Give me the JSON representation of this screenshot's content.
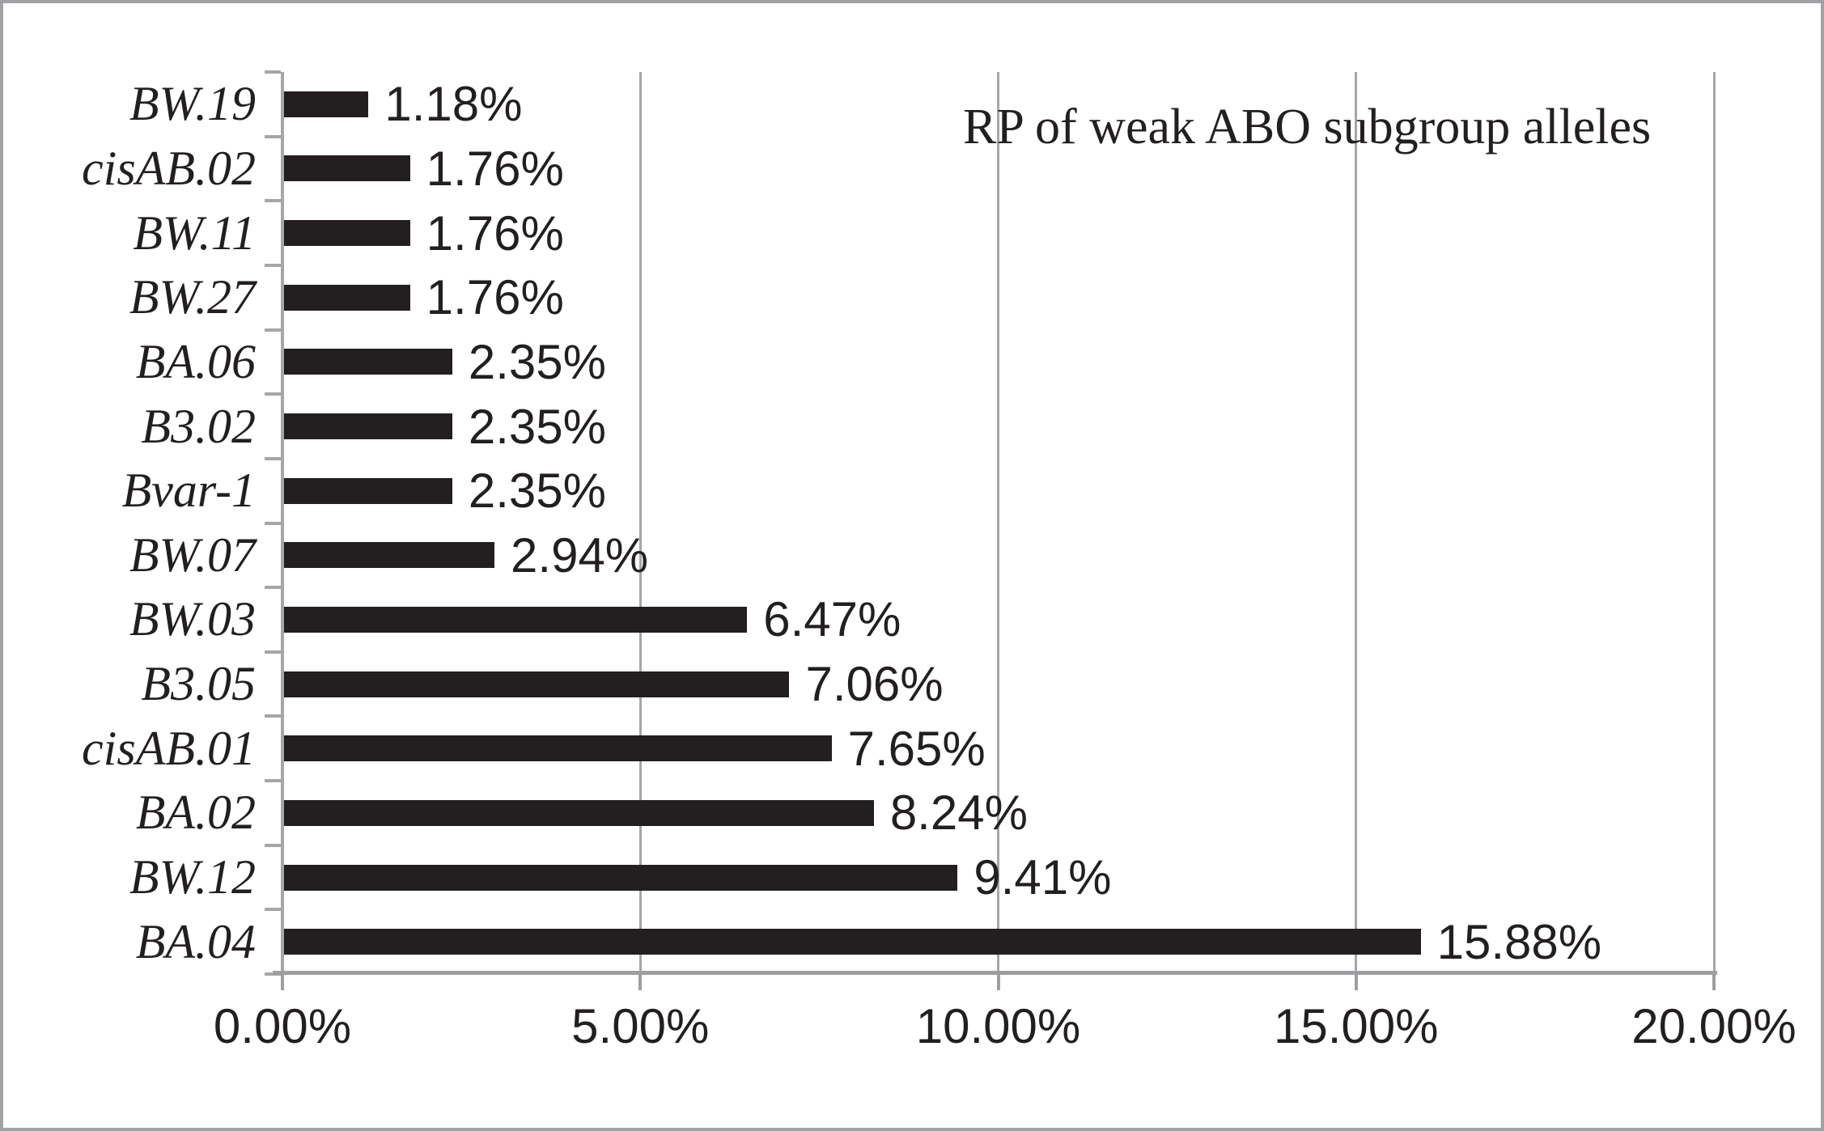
{
  "chart_data": {
    "type": "bar",
    "orientation": "horizontal",
    "title": "RP of weak ABO subgroup alleles",
    "categories": [
      "BW.19",
      "cisAB.02",
      "BW.11",
      "BW.27",
      "BA.06",
      "B3.02",
      "Bvar-1",
      "BW.07",
      "BW.03",
      "B3.05",
      "cisAB.01",
      "BA.02",
      "BW.12",
      "BA.04"
    ],
    "values": [
      1.18,
      1.76,
      1.76,
      1.76,
      2.35,
      2.35,
      2.35,
      2.94,
      6.47,
      7.06,
      7.65,
      8.24,
      9.41,
      15.88
    ],
    "value_labels": [
      "1.18%",
      "1.76%",
      "1.76%",
      "1.76%",
      "2.35%",
      "2.35%",
      "2.35%",
      "2.94%",
      "6.47%",
      "7.06%",
      "7.65%",
      "8.24%",
      "9.41%",
      "15.88%"
    ],
    "x_tick_labels": [
      "0.00%",
      "5.00%",
      "10.00%",
      "15.00%",
      "20.00%"
    ],
    "x_tick_values": [
      0,
      5,
      10,
      15,
      20
    ],
    "xlim": [
      0,
      20
    ],
    "xlabel": "",
    "ylabel": "",
    "grid": "vertical-gridlines",
    "legend": "none",
    "value_label_position": "outside-end",
    "colors": {
      "bar": "#231f20",
      "text": "#231f20",
      "gridline": "#a6a6a6",
      "axis": "#9c9ea1",
      "figure_border": "#9fa1a4",
      "background": "#ffffff"
    }
  }
}
